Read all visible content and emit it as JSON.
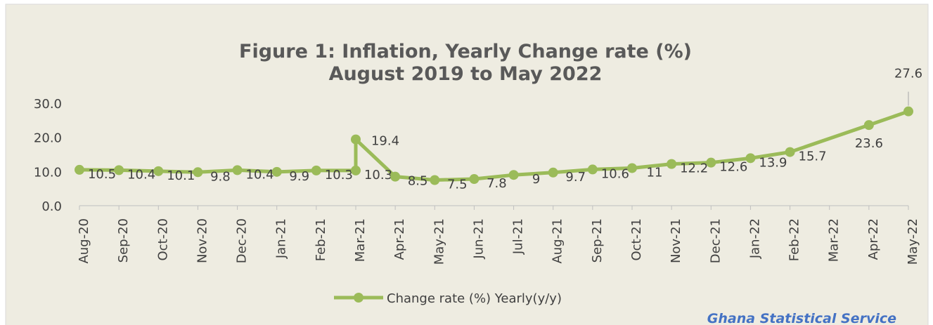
{
  "chart_data": {
    "type": "line",
    "title": "Figure 1: Inflation, Yearly Change rate (%)",
    "subtitle": "August 2019 to May 2022",
    "source": "Ghana Statistical Service",
    "categories": [
      "Aug-20",
      "Sep-20",
      "Oct-20",
      "Nov-20",
      "Dec-20",
      "Jan-21",
      "Feb-21",
      "Mar-21",
      null,
      "Apr-21",
      "May-21",
      "Jun-21",
      "Jul-21",
      "Aug-21",
      "Sep-21",
      "Oct-21",
      "Nov-21",
      "Dec-21",
      "Jan-22",
      "Feb-22",
      "Mar-22",
      "Apr-22",
      "May-22"
    ],
    "series": [
      {
        "name": "Change rate (%) Yearly(y/y)",
        "color": "#9bbb59",
        "values": [
          10.5,
          10.4,
          10.1,
          9.8,
          10.4,
          9.9,
          10.3,
          10.3,
          19.4,
          8.5,
          7.5,
          7.8,
          9,
          9.7,
          10.6,
          11,
          12.2,
          12.6,
          13.9,
          15.7,
          null,
          23.6,
          27.6
        ]
      }
    ],
    "connect_gaps": true,
    "ylim": [
      0,
      30
    ],
    "yticks": [
      {
        "value": 0,
        "label": "0.0"
      },
      {
        "value": 10,
        "label": "10.0"
      },
      {
        "value": 20,
        "label": "20.0"
      },
      {
        "value": 30,
        "label": "30.0"
      }
    ],
    "legend": "bottom"
  }
}
